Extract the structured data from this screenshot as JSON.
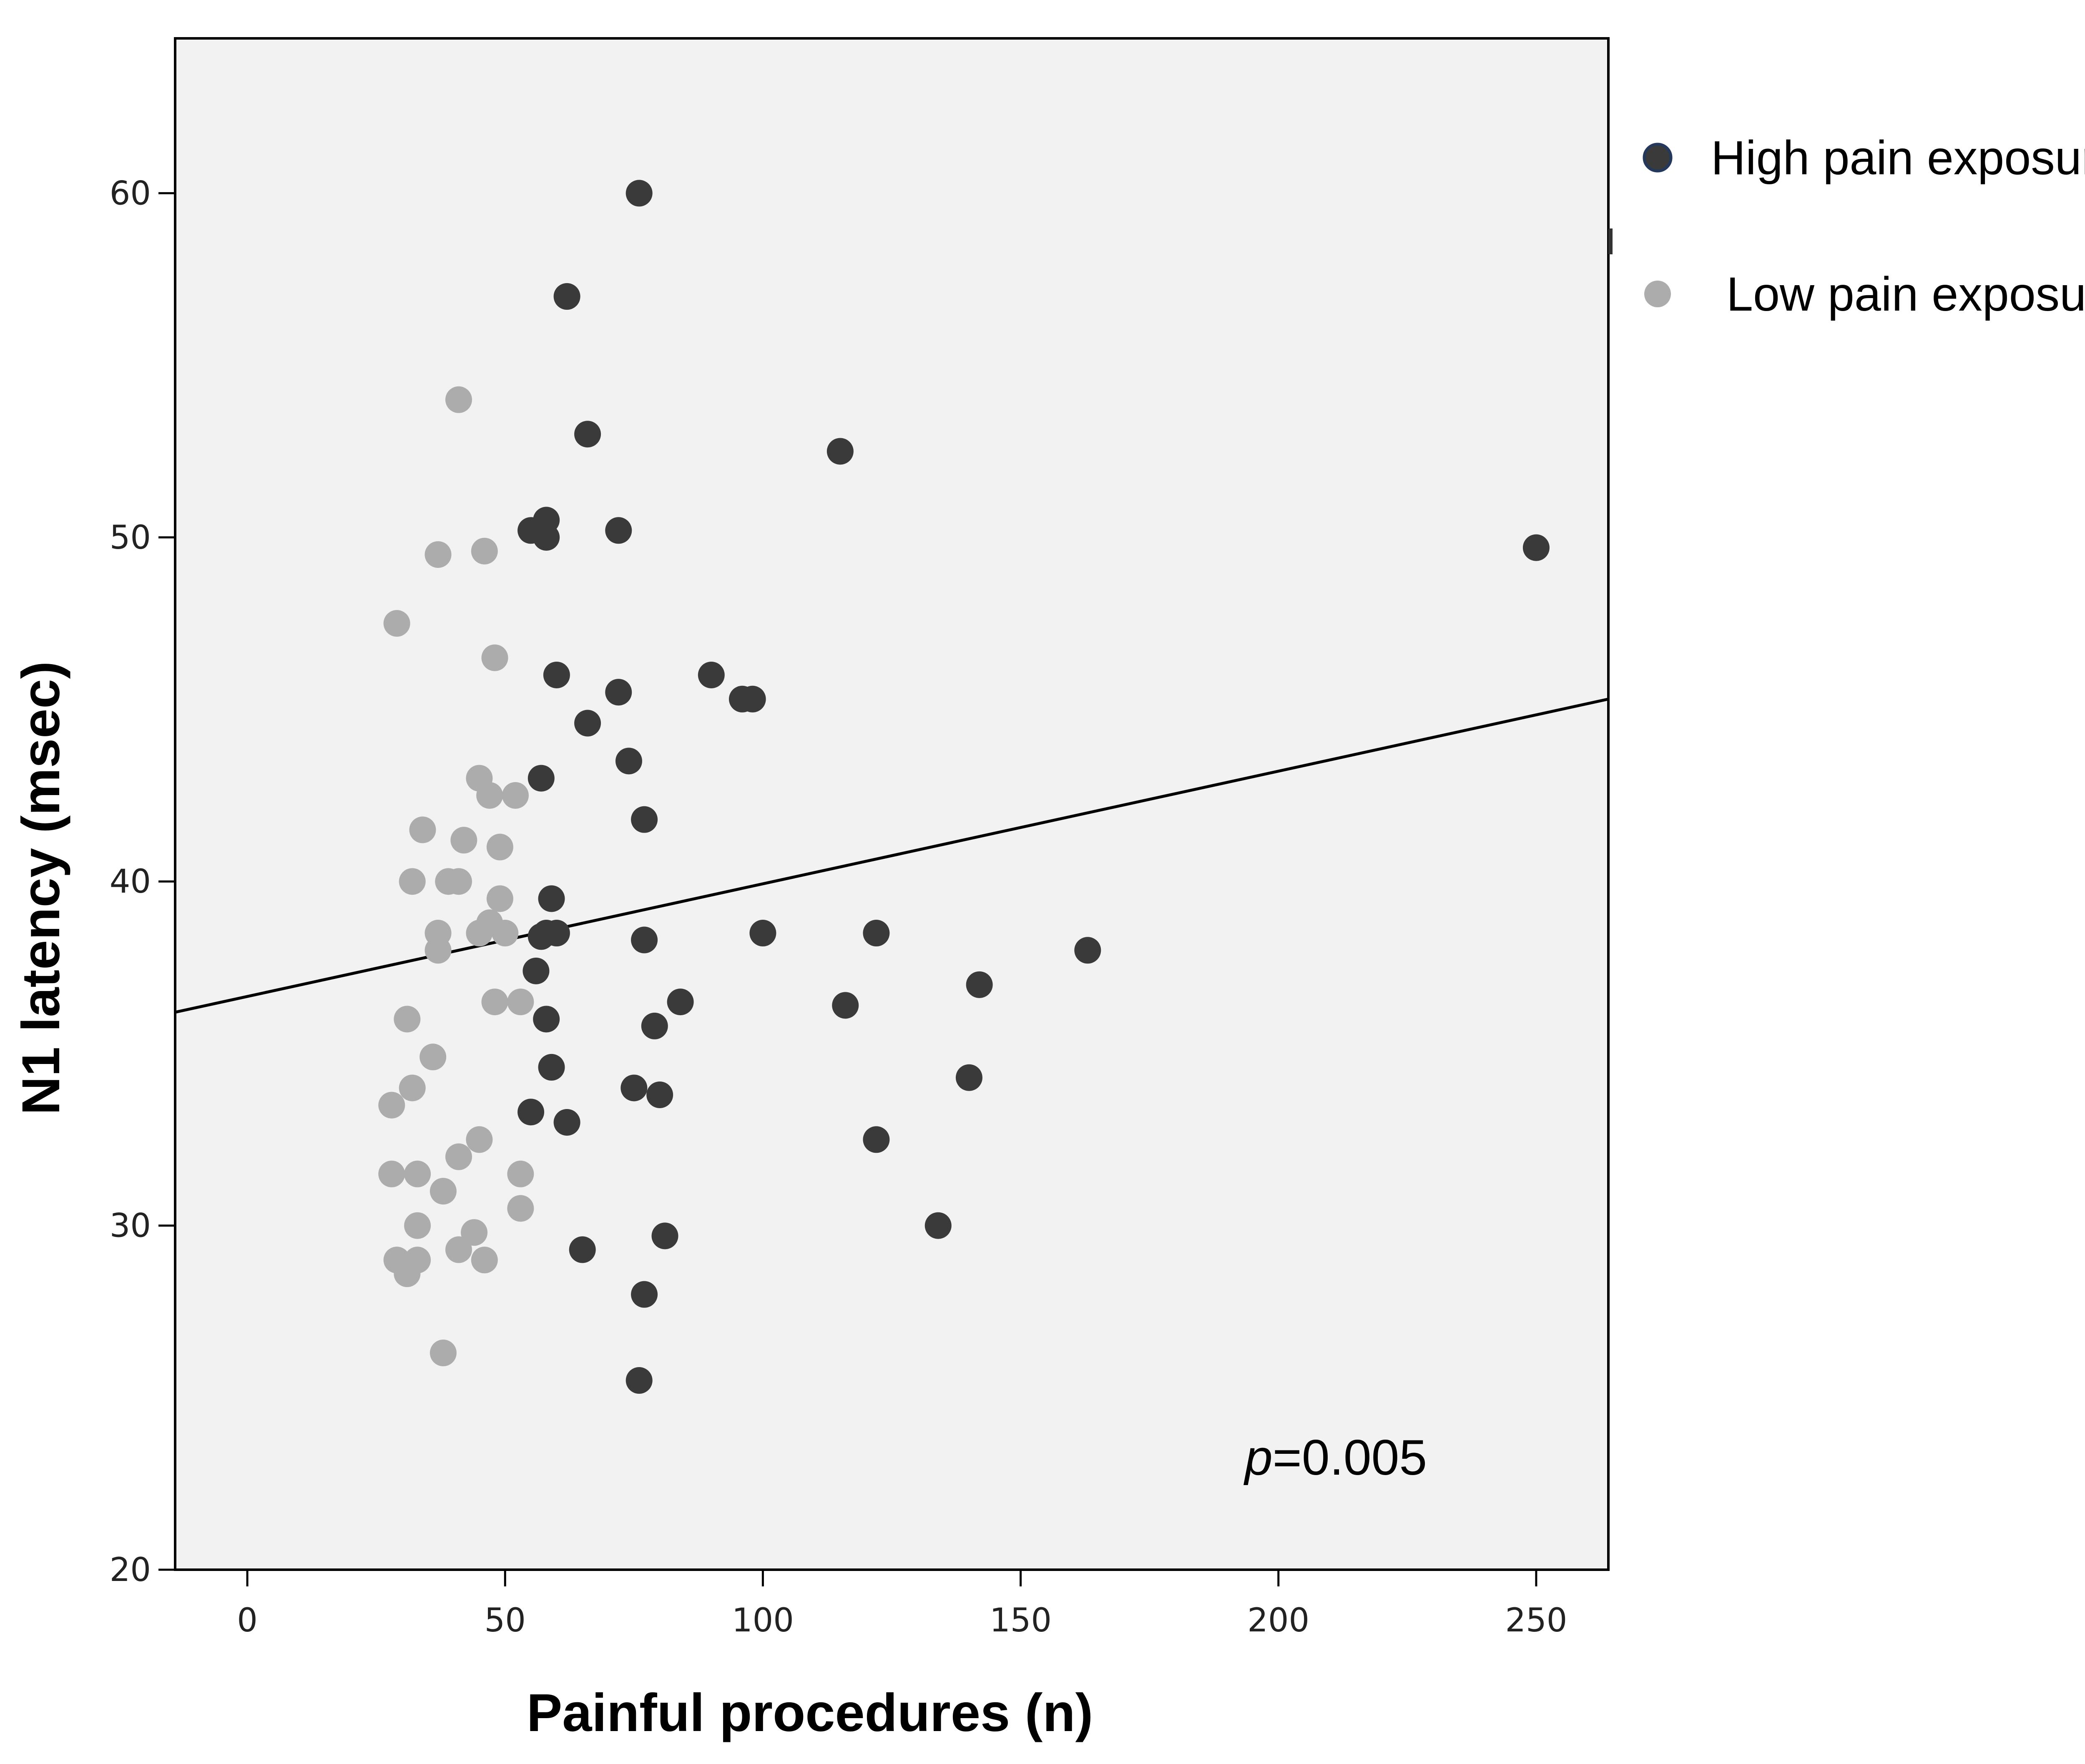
{
  "chart_data": {
    "type": "scatter",
    "title": "",
    "xlabel": "Painful procedures (n)",
    "ylabel": "N1 latency (msec)",
    "xlim": [
      -14,
      264
    ],
    "ylim": [
      20,
      64.5
    ],
    "xticks": [
      0,
      50,
      100,
      150,
      200,
      250
    ],
    "yticks": [
      20,
      30,
      40,
      50,
      60
    ],
    "grid": false,
    "legend_position": "top-right-outside",
    "colors": {
      "high": "#3a3a3a",
      "low": "#acacac",
      "plot_bg": "#f2f2f2",
      "frame": "#000000"
    },
    "series": [
      {
        "name": "High pain exposure",
        "color": "#3a3a3a",
        "points": [
          [
            76,
            60
          ],
          [
            62,
            57
          ],
          [
            66,
            53
          ],
          [
            115,
            52.5
          ],
          [
            55,
            50.2
          ],
          [
            58,
            50.5
          ],
          [
            58,
            50
          ],
          [
            72,
            50.2
          ],
          [
            250,
            49.7
          ],
          [
            60,
            46
          ],
          [
            72,
            45.5
          ],
          [
            90,
            46
          ],
          [
            96,
            45.3
          ],
          [
            98,
            45.3
          ],
          [
            66,
            44.6
          ],
          [
            74,
            43.5
          ],
          [
            57,
            43
          ],
          [
            77,
            41.8
          ],
          [
            59,
            39.5
          ],
          [
            57,
            38.4
          ],
          [
            58,
            38.5
          ],
          [
            60,
            38.5
          ],
          [
            77,
            38.3
          ],
          [
            100,
            38.5
          ],
          [
            122,
            38.5
          ],
          [
            163,
            38
          ],
          [
            56,
            37.4
          ],
          [
            142,
            37
          ],
          [
            84,
            36.5
          ],
          [
            116,
            36.4
          ],
          [
            58,
            36
          ],
          [
            79,
            35.8
          ],
          [
            59,
            34.6
          ],
          [
            140,
            34.3
          ],
          [
            75,
            34
          ],
          [
            80,
            33.8
          ],
          [
            55,
            33.3
          ],
          [
            62,
            33
          ],
          [
            122,
            32.5
          ],
          [
            134,
            30
          ],
          [
            81,
            29.7
          ],
          [
            65,
            29.3
          ],
          [
            77,
            28
          ],
          [
            76,
            25.5
          ]
        ]
      },
      {
        "name": "Low pain exposure",
        "color": "#acacac",
        "points": [
          [
            41,
            54
          ],
          [
            37,
            49.5
          ],
          [
            46,
            49.6
          ],
          [
            29,
            47.5
          ],
          [
            48,
            46.5
          ],
          [
            45,
            43
          ],
          [
            47,
            42.5
          ],
          [
            52,
            42.5
          ],
          [
            34,
            41.5
          ],
          [
            42,
            41.2
          ],
          [
            49,
            41
          ],
          [
            32,
            40
          ],
          [
            39,
            40
          ],
          [
            41,
            40
          ],
          [
            49,
            39.5
          ],
          [
            47,
            38.8
          ],
          [
            37,
            38.5
          ],
          [
            45,
            38.5
          ],
          [
            50,
            38.5
          ],
          [
            37,
            38
          ],
          [
            48,
            36.5
          ],
          [
            53,
            36.5
          ],
          [
            31,
            36
          ],
          [
            36,
            34.9
          ],
          [
            32,
            34
          ],
          [
            28,
            33.5
          ],
          [
            41,
            32
          ],
          [
            45,
            32.5
          ],
          [
            28,
            31.5
          ],
          [
            33,
            31.5
          ],
          [
            53,
            31.5
          ],
          [
            38,
            31
          ],
          [
            53,
            30.5
          ],
          [
            33,
            30
          ],
          [
            44,
            29.8
          ],
          [
            29,
            29
          ],
          [
            33,
            29
          ],
          [
            41,
            29.3
          ],
          [
            46,
            29
          ],
          [
            31,
            28.6
          ],
          [
            38,
            26.3
          ]
        ]
      }
    ],
    "fit_line": {
      "type": "linear",
      "points": [
        [
          -14,
          36.2
        ],
        [
          264,
          45.3
        ]
      ]
    },
    "annotation": {
      "italic": "p",
      "text": "=0.005",
      "position": "bottom-right"
    }
  }
}
